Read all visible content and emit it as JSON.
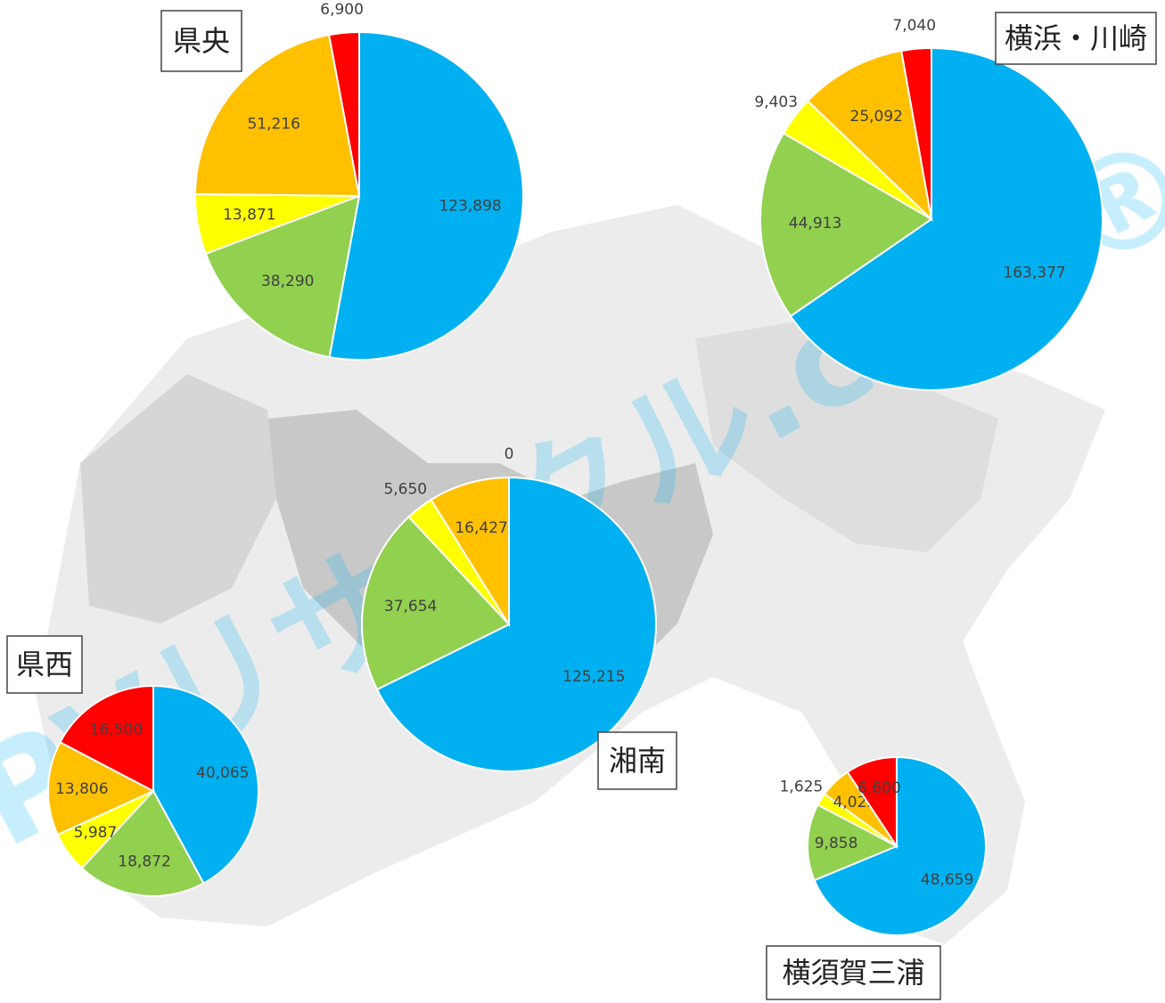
{
  "chart_data": [
    {
      "type": "pie",
      "title": "県央",
      "values": [
        123898,
        38290,
        13871,
        51216,
        6900
      ],
      "value_labels": [
        "123,898",
        "38,290",
        "13,871",
        "51,216",
        "6,900"
      ],
      "colors": [
        "#00b0f0",
        "#92d050",
        "#ffff00",
        "#ffc000",
        "#ff0000"
      ]
    },
    {
      "type": "pie",
      "title": "横浜・川崎",
      "values": [
        163377,
        44913,
        9403,
        25092,
        7040
      ],
      "value_labels": [
        "163,377",
        "44,913",
        "9,403",
        "25,092",
        "7,040"
      ],
      "colors": [
        "#00b0f0",
        "#92d050",
        "#ffff00",
        "#ffc000",
        "#ff0000"
      ]
    },
    {
      "type": "pie",
      "title": "湘南",
      "values": [
        125215,
        37654,
        5650,
        16427,
        0
      ],
      "value_labels": [
        "125,215",
        "37,654",
        "5,650",
        "16,427",
        "0"
      ],
      "colors": [
        "#00b0f0",
        "#92d050",
        "#ffff00",
        "#ffc000",
        "#ff0000"
      ]
    },
    {
      "type": "pie",
      "title": "県西",
      "values": [
        40065,
        18872,
        5987,
        13806,
        16500
      ],
      "value_labels": [
        "40,065",
        "18,872",
        "5,987",
        "13,806",
        "16,500"
      ],
      "colors": [
        "#00b0f0",
        "#92d050",
        "#ffff00",
        "#ffc000",
        "#ff0000"
      ]
    },
    {
      "type": "pie",
      "title": "横須賀三浦",
      "values": [
        48659,
        9858,
        1625,
        4025,
        6600
      ],
      "value_labels": [
        "48,659",
        "9,858",
        "1,625",
        "4,025",
        "6,600"
      ],
      "colors": [
        "#00b0f0",
        "#92d050",
        "#ffff00",
        "#ffc000",
        "#ff0000"
      ]
    }
  ],
  "watermark": "PVリサイクル.com®"
}
